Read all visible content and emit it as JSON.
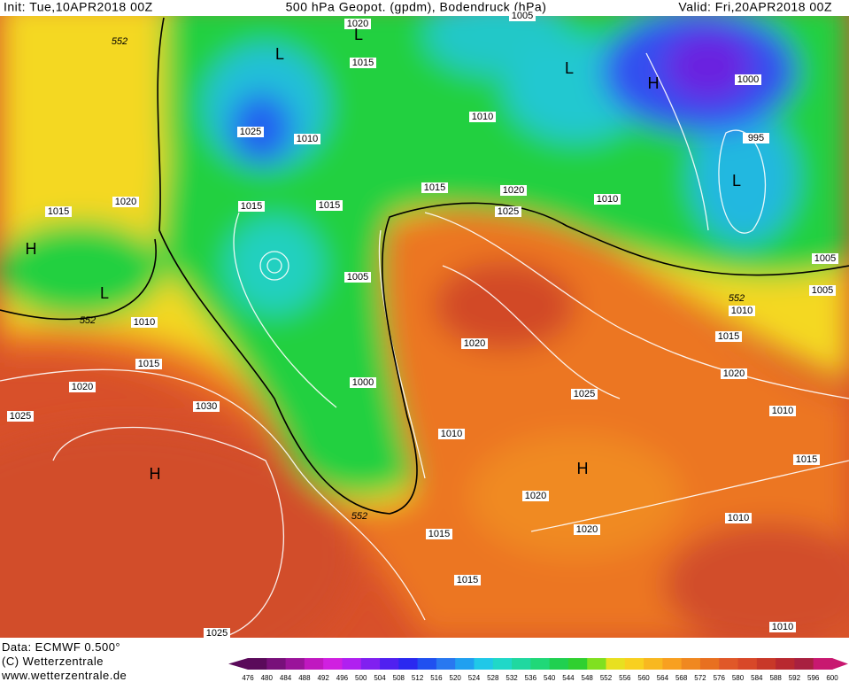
{
  "header": {
    "init": "Init: Tue,10APR2018 00Z",
    "title": "500 hPa Geopot. (gpdm), Bodendruck (hPa)",
    "valid": "Valid: Fri,20APR2018 00Z"
  },
  "map": {
    "pressure_labels": [
      "1020",
      "1015",
      "1010",
      "1025",
      "1015",
      "1015",
      "1010",
      "1015",
      "1020",
      "1025",
      "1010",
      "1000",
      "995",
      "1005",
      "1005",
      "1010",
      "1015",
      "1020",
      "1010",
      "1015",
      "1010",
      "1010",
      "1015",
      "1020",
      "1010",
      "1015",
      "1020",
      "1025",
      "1030",
      "1005",
      "1000",
      "1020",
      "1010",
      "1025",
      "1020",
      "1020",
      "1015",
      "1015",
      "1025",
      "1005"
    ],
    "geopotential_labels": [
      "552",
      "552",
      "552",
      "552"
    ],
    "centers": [
      "H",
      "L",
      "H",
      "L",
      "L",
      "L",
      "H",
      "L",
      "H"
    ]
  },
  "footer": {
    "lines": [
      "Data: ECMWF   0.500°",
      "(C) Wetterzentrale",
      "www.wetterzentrale.de"
    ]
  },
  "colorbar": {
    "values": [
      476,
      480,
      484,
      488,
      492,
      496,
      500,
      504,
      508,
      512,
      516,
      520,
      524,
      528,
      532,
      536,
      540,
      544,
      548,
      552,
      556,
      560,
      564,
      568,
      572,
      576,
      580,
      584,
      588,
      592,
      596,
      600
    ],
    "colors": [
      "#5a0a5a",
      "#78107a",
      "#9a149a",
      "#c018c0",
      "#d020e0",
      "#b020f0",
      "#8020f0",
      "#5020f0",
      "#2a28f0",
      "#2050f0",
      "#2878f0",
      "#20a0f0",
      "#20c8e8",
      "#20d8c8",
      "#20d8a0",
      "#20d878",
      "#20d050",
      "#30d030",
      "#80e020",
      "#e8e020",
      "#f8d020",
      "#f8b820",
      "#f8a020",
      "#f08820",
      "#e87020",
      "#e05828",
      "#d84828",
      "#c83828",
      "#b82830",
      "#a82040",
      "#c81870"
    ]
  }
}
